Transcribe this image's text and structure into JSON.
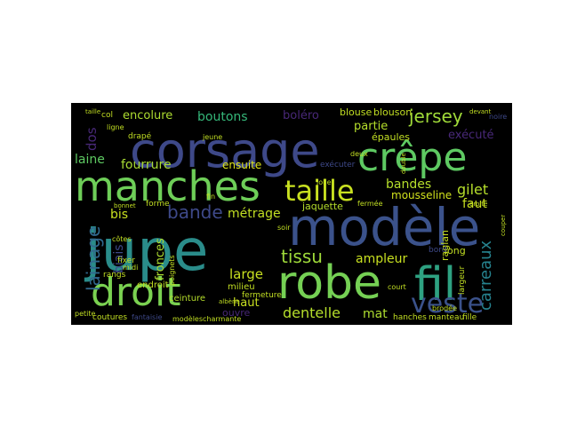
{
  "palette": {
    "background": "#000000",
    "page": "#ffffff",
    "viridis": [
      "#440154",
      "#482878",
      "#3e4989",
      "#31688e",
      "#26828e",
      "#1f9e89",
      "#35b779",
      "#6ece58",
      "#b5de2b",
      "#fde725"
    ]
  },
  "words": [
    {
      "text": "jupe"
    },
    {
      "text": "corsage"
    },
    {
      "text": "modèle"
    },
    {
      "text": "manches"
    },
    {
      "text": "robe"
    },
    {
      "text": "crêpe"
    },
    {
      "text": "fil"
    },
    {
      "text": "droit"
    },
    {
      "text": "taille"
    },
    {
      "text": "veste"
    },
    {
      "text": "bande"
    },
    {
      "text": "jersey"
    },
    {
      "text": "tissu"
    },
    {
      "text": "dentelle"
    },
    {
      "text": "lainage"
    },
    {
      "text": "métrage"
    },
    {
      "text": "carreaux"
    },
    {
      "text": "encolure"
    },
    {
      "text": "boutons"
    },
    {
      "text": "fourrure"
    },
    {
      "text": "gilet"
    },
    {
      "text": "large"
    },
    {
      "text": "laine"
    },
    {
      "text": "ensuite"
    },
    {
      "text": "ampleur"
    },
    {
      "text": "bandes"
    },
    {
      "text": "mousseline"
    },
    {
      "text": "jaquette"
    },
    {
      "text": "boléro"
    },
    {
      "text": "blouse"
    },
    {
      "text": "blouson"
    },
    {
      "text": "partie"
    },
    {
      "text": "épaules"
    },
    {
      "text": "exécuté"
    },
    {
      "text": "faut"
    },
    {
      "text": "haut"
    },
    {
      "text": "mat"
    },
    {
      "text": "dos"
    },
    {
      "text": "biais"
    },
    {
      "text": "bis"
    },
    {
      "text": "fronces"
    },
    {
      "text": "ceinture"
    },
    {
      "text": "fermeture"
    },
    {
      "text": "raglan"
    },
    {
      "text": "long"
    },
    {
      "text": "bord"
    },
    {
      "text": "hanches"
    },
    {
      "text": "manteau"
    },
    {
      "text": "fille"
    },
    {
      "text": "coutures"
    },
    {
      "text": "fantaisie"
    },
    {
      "text": "modèles"
    },
    {
      "text": "charmante"
    },
    {
      "text": "ouvre"
    },
    {
      "text": "milieu"
    },
    {
      "text": "endroit"
    },
    {
      "text": "forme"
    },
    {
      "text": "fin"
    },
    {
      "text": "jolie"
    },
    {
      "text": "fermée"
    },
    {
      "text": "soir"
    },
    {
      "text": "col"
    },
    {
      "text": "ligne"
    },
    {
      "text": "drapé"
    },
    {
      "text": "jeune"
    },
    {
      "text": "noire"
    },
    {
      "text": "court"
    },
    {
      "text": "largeur"
    },
    {
      "text": "droite"
    },
    {
      "text": "brodée"
    },
    {
      "text": "couper"
    },
    {
      "text": "rangs"
    },
    {
      "text": "côtes"
    },
    {
      "text": "fixer"
    },
    {
      "text": "midi"
    },
    {
      "text": "bonnet"
    },
    {
      "text": "petite"
    },
    {
      "text": "exécuter"
    },
    {
      "text": "deux"
    },
    {
      "text": "double"
    },
    {
      "text": "albène"
    },
    {
      "text": "poignets"
    },
    {
      "text": "taille"
    },
    {
      "text": "devant"
    }
  ]
}
